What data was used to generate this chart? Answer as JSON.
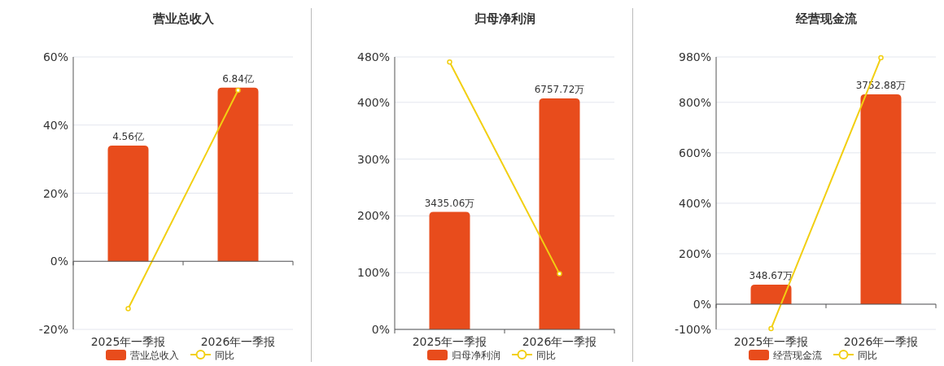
{
  "chart_data": [
    {
      "type": "bar",
      "title": "营业总收入",
      "categories": [
        "2025年一季报",
        "2026年一季报"
      ],
      "ylim": [
        -20,
        60
      ],
      "yticks": [
        {
          "value": -20,
          "label": "-20%"
        },
        {
          "value": 0,
          "label": "0%"
        },
        {
          "value": 20,
          "label": "20%"
        },
        {
          "value": 40,
          "label": "40%"
        },
        {
          "value": 60,
          "label": "60%"
        }
      ],
      "y2lim": [
        -2.68,
        8.05
      ],
      "grid": "y",
      "legend": "bottom",
      "series": [
        {
          "name": "营业总收入",
          "color": "#e84c1c",
          "axis": "y2",
          "values": [
            4.56,
            6.84
          ],
          "value_labels": [
            "4.56亿",
            "6.84亿"
          ]
        },
        {
          "type": "line",
          "name": "同比",
          "color": "#f2cf12",
          "marker": "circle",
          "values": [
            -13.9,
            50.2
          ]
        }
      ]
    },
    {
      "type": "bar",
      "title": "归母净利润",
      "categories": [
        "2025年一季报",
        "2026年一季报"
      ],
      "ylim": [
        0,
        480
      ],
      "yticks": [
        {
          "value": 0,
          "label": "0%"
        },
        {
          "value": 100,
          "label": "100%"
        },
        {
          "value": 200,
          "label": "200%"
        },
        {
          "value": 300,
          "label": "300%"
        },
        {
          "value": 400,
          "label": "400%"
        },
        {
          "value": 480,
          "label": "480%"
        }
      ],
      "y2lim": [
        0,
        7970
      ],
      "grid": "y",
      "legend": "bottom",
      "series": [
        {
          "name": "归母净利润",
          "color": "#e84c1c",
          "axis": "y2",
          "values": [
            3435.06,
            6757.72
          ],
          "value_labels": [
            "3435.06万",
            "6757.72万"
          ]
        },
        {
          "type": "line",
          "name": "同比",
          "color": "#f2cf12",
          "marker": "circle",
          "values": [
            471,
            98
          ]
        }
      ]
    },
    {
      "type": "bar",
      "title": "经营现金流",
      "categories": [
        "2025年一季报",
        "2026年一季报"
      ],
      "ylim": [
        -100,
        980
      ],
      "yticks": [
        {
          "value": -100,
          "label": "-100%"
        },
        {
          "value": 0,
          "label": "0%"
        },
        {
          "value": 200,
          "label": "200%"
        },
        {
          "value": 400,
          "label": "400%"
        },
        {
          "value": 600,
          "label": "600%"
        },
        {
          "value": 800,
          "label": "800%"
        },
        {
          "value": 980,
          "label": "980%"
        }
      ],
      "y2lim": [
        -451,
        4420
      ],
      "grid": "y",
      "legend": "bottom",
      "series": [
        {
          "name": "经营现金流",
          "color": "#e84c1c",
          "axis": "y2",
          "values": [
            348.67,
            3752.88
          ],
          "value_labels": [
            "348.67万",
            "3752.88万"
          ]
        },
        {
          "type": "line",
          "name": "同比",
          "color": "#f2cf12",
          "marker": "circle",
          "values": [
            -97,
            977
          ]
        }
      ]
    }
  ]
}
